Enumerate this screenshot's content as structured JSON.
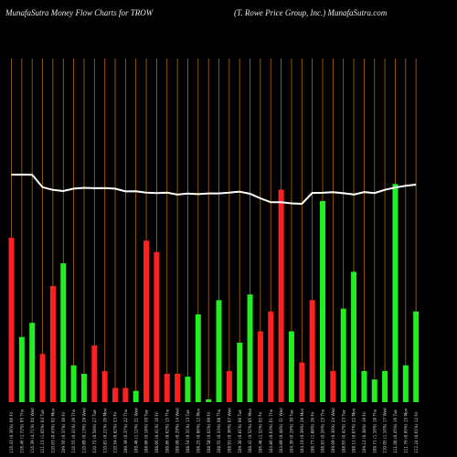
{
  "header": {
    "left_title": "MunafaSutra  Money Flow  Charts for TROW",
    "right_title": "(T. Rowe   Price   Group,  Inc.) MunafaSutra.com"
  },
  "colors": {
    "background": "#000000",
    "grid": "#b36b00",
    "up": "#22ee22",
    "down": "#ff2020",
    "price_line": "#ffffff"
  },
  "chart_data": {
    "type": "bar",
    "title": "MunafaSutra  Money Flow  Charts for TROW",
    "subtitle": "(T. Rowe   Price   Group,  Inc.) MunafaSutra.com",
    "grid": true,
    "categories": [
      "116.43 (0.36%) 06 Fri",
      "116.46 (1.72%) 05 Thu",
      "116.39 (4.71%) 04 Wed",
      "111.15 (1.05%) 03 Tue",
      "110.03 (0.43%) 02 Mon",
      "109.56 (0.37%) 30 Fri",
      "110.55 (0.31%) 29 Thu",
      "110.89 (0.13%) 28 Wed",
      "110.75 (0.58%) 27 Tue",
      "110.81 (0.21%) 26 Mon",
      "110.54 (0.82%) 23 Fri",
      "109.39 (0.37%) 22 Thu",
      "109.48 (1.12%) 21 Wed",
      "108.86 (0.18%) 20 Tue",
      "108.66 (0.41%) 16 Fri",
      "108.86 (0.62%) 15 Thu",
      "108.08 (0.29%) 14 Wed",
      "108.54 (0.31%) 13 Tue",
      "108.25 (0.86%) 12 Mon",
      "108.58 (0.02%) 09 Fri",
      "108.55 (0.33%) 08 Thu",
      "108.91 (0.36%) 07 Wed",
      "109.30 (0.81%) 06 Tue",
      "108.42 (0.52%) 05 Mon",
      "106.48 (1.52%) 02 Fri",
      "104.86 (0.03%) 01 Thu",
      "104.89 (0.48%) 31 Wed",
      "104.39 (0.19%) 30 Tue",
      "104.19 (0.39%) 29 Mon",
      "108.77 (1.88%) 26 Fri",
      "108.83 (0.26%) 25 Thu",
      "109.09 (0.30%) 24 Wed",
      "108.65 (0.42%) 23 Tue",
      "108.11 (0.07%) 22 Mon",
      "109.12 (0.38%) 19 Fri",
      "108.71 (1.10%) 18 Thu",
      "110.05 (1.10%) 17 Wed",
      "111.00 (0.45%) 16 Tue",
      "111.76 (0.95%) 15 Mon",
      "112.24 (0.61%) 12 Fri"
    ],
    "series": [
      {
        "key": "money_flow",
        "values": [
          58,
          23,
          28,
          17,
          41,
          49,
          13,
          10,
          20,
          11,
          5,
          5,
          4,
          57,
          53,
          10,
          10,
          9,
          31,
          1,
          36,
          11,
          21,
          38,
          25,
          32,
          75,
          25,
          14,
          36,
          71,
          11,
          33,
          46,
          11,
          8,
          11,
          77,
          13,
          32
        ],
        "direction": [
          "down",
          "up",
          "up",
          "down",
          "down",
          "up",
          "up",
          "up",
          "down",
          "down",
          "down",
          "down",
          "up",
          "down",
          "down",
          "down",
          "down",
          "up",
          "up",
          "up",
          "up",
          "down",
          "up",
          "up",
          "down",
          "down",
          "down",
          "up",
          "down",
          "down",
          "up",
          "down",
          "up",
          "up",
          "up",
          "up",
          "up",
          "up",
          "up",
          "up"
        ]
      },
      {
        "key": "price",
        "values": [
          116.43,
          116.46,
          116.39,
          111.15,
          110.03,
          109.56,
          110.55,
          110.89,
          110.75,
          110.81,
          110.54,
          109.39,
          109.48,
          108.86,
          108.66,
          108.86,
          108.08,
          108.54,
          108.25,
          108.58,
          108.55,
          108.91,
          109.3,
          108.42,
          106.48,
          104.86,
          104.89,
          104.39,
          104.19,
          108.77,
          108.83,
          109.09,
          108.65,
          108.11,
          109.12,
          108.71,
          110.05,
          111.0,
          111.76,
          112.24
        ]
      }
    ]
  }
}
